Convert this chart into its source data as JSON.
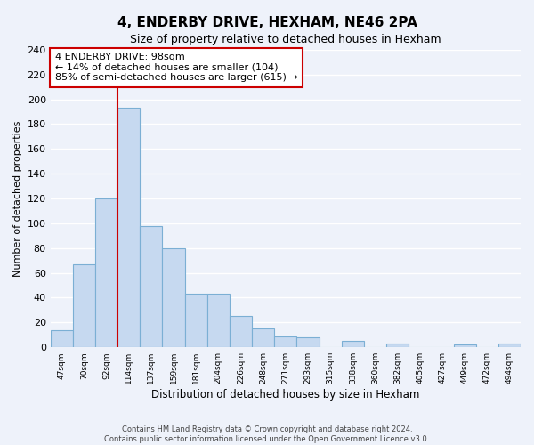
{
  "title": "4, ENDERBY DRIVE, HEXHAM, NE46 2PA",
  "subtitle": "Size of property relative to detached houses in Hexham",
  "xlabel": "Distribution of detached houses by size in Hexham",
  "ylabel": "Number of detached properties",
  "bin_labels": [
    "47sqm",
    "70sqm",
    "92sqm",
    "114sqm",
    "137sqm",
    "159sqm",
    "181sqm",
    "204sqm",
    "226sqm",
    "248sqm",
    "271sqm",
    "293sqm",
    "315sqm",
    "338sqm",
    "360sqm",
    "382sqm",
    "405sqm",
    "427sqm",
    "449sqm",
    "472sqm",
    "494sqm"
  ],
  "bar_heights": [
    14,
    67,
    120,
    193,
    98,
    80,
    43,
    43,
    25,
    15,
    9,
    8,
    0,
    5,
    0,
    3,
    0,
    0,
    2,
    0,
    3
  ],
  "bar_color": "#c6d9f0",
  "bar_edge_color": "#7bafd4",
  "vline_color": "#cc0000",
  "vline_x_index": 2.5,
  "ylim": [
    0,
    240
  ],
  "yticks": [
    0,
    20,
    40,
    60,
    80,
    100,
    120,
    140,
    160,
    180,
    200,
    220,
    240
  ],
  "annotation_title": "4 ENDERBY DRIVE: 98sqm",
  "annotation_line1": "← 14% of detached houses are smaller (104)",
  "annotation_line2": "85% of semi-detached houses are larger (615) →",
  "annotation_box_color": "#ffffff",
  "annotation_border_color": "#cc0000",
  "footer_line1": "Contains HM Land Registry data © Crown copyright and database right 2024.",
  "footer_line2": "Contains public sector information licensed under the Open Government Licence v3.0.",
  "bg_color": "#eef2fa",
  "grid_color": "#ffffff"
}
